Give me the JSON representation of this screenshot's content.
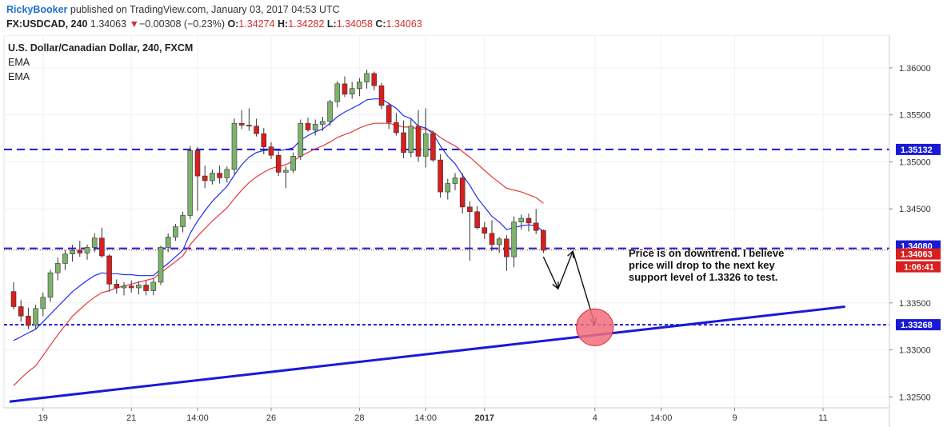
{
  "header": {
    "author": "RickyBooker",
    "published_text": " published on TradingView.com, January 03, 2017 04:53 UTC",
    "symbol": "FX:USDCAD, 240",
    "last": "1.34063",
    "change": "−0.00308 (−0.23%)",
    "o_label": "O:",
    "o_value": "1.34274",
    "h_label": "H:",
    "h_value": "1.34282",
    "l_label": "L:",
    "l_value": "1.34058",
    "c_label": "C:",
    "c_value": "1.34063"
  },
  "legend": {
    "title": "U.S. Dollar/Canadian Dollar, 240, FXCM",
    "indicators": [
      "EMA",
      "EMA"
    ]
  },
  "annotation": {
    "lines": [
      "Price is on downtrend. I believe",
      "price will drop to the next key",
      "support level of 1.3326 to test."
    ]
  },
  "colors": {
    "bull": "#7cb26b",
    "bear": "#d81e1e",
    "ema_fast": "#1e2ff0",
    "ema_slow": "#e53935",
    "level": "#1a1ad6",
    "trend": "#1a1ad6",
    "target": "#f26d7d"
  },
  "chart_data": {
    "type": "candlestick",
    "ylim": [
      1.3235,
      1.3622
    ],
    "price_ticks": [
      "1.36000",
      "1.35500",
      "1.35000",
      "1.34500",
      "1.33500",
      "1.33000",
      "1.32500"
    ],
    "price_tick_values": [
      1.36,
      1.355,
      1.35,
      1.345,
      1.335,
      1.33,
      1.325
    ],
    "time_labels": [
      "19",
      "21",
      "14:00",
      "26",
      "28",
      "14:00",
      "2017",
      "4",
      "14:00",
      "9",
      "11"
    ],
    "time_label_bars": [
      4,
      16,
      25,
      35,
      47,
      56,
      64,
      79,
      88,
      98,
      110
    ],
    "levels": [
      {
        "label": "1.35132",
        "value": 1.35132,
        "style": "dashed"
      },
      {
        "label": "1.34080",
        "value": 1.3408,
        "style": "dashed"
      },
      {
        "label": "1.33268",
        "value": 1.33268,
        "style": "dotted"
      }
    ],
    "last_price": {
      "label": "1.34063",
      "value": 1.34063,
      "countdown": "1:06:41"
    },
    "trendline": {
      "from": [
        0,
        1.3245
      ],
      "to": [
        113,
        1.3346
      ]
    },
    "projection": [
      [
        72,
        1.3399
      ],
      [
        74,
        1.3365
      ],
      [
        76,
        1.3405
      ],
      [
        79,
        1.3327
      ]
    ],
    "target": {
      "bar": 79,
      "value": 1.3324
    },
    "candles": [
      {
        "o": 1.3362,
        "h": 1.3372,
        "l": 1.3343,
        "c": 1.3346
      },
      {
        "o": 1.3346,
        "h": 1.3353,
        "l": 1.333,
        "c": 1.3336
      },
      {
        "o": 1.3336,
        "h": 1.3345,
        "l": 1.3322,
        "c": 1.3326
      },
      {
        "o": 1.3326,
        "h": 1.3348,
        "l": 1.3322,
        "c": 1.3344
      },
      {
        "o": 1.3344,
        "h": 1.3361,
        "l": 1.3336,
        "c": 1.3356
      },
      {
        "o": 1.3356,
        "h": 1.3385,
        "l": 1.3351,
        "c": 1.3382
      },
      {
        "o": 1.3382,
        "h": 1.3398,
        "l": 1.3374,
        "c": 1.3392
      },
      {
        "o": 1.3392,
        "h": 1.3406,
        "l": 1.3385,
        "c": 1.3402
      },
      {
        "o": 1.3402,
        "h": 1.3412,
        "l": 1.3394,
        "c": 1.3406
      },
      {
        "o": 1.3406,
        "h": 1.3416,
        "l": 1.3399,
        "c": 1.3403
      },
      {
        "o": 1.3403,
        "h": 1.3412,
        "l": 1.3396,
        "c": 1.3409
      },
      {
        "o": 1.3409,
        "h": 1.3424,
        "l": 1.3404,
        "c": 1.3419
      },
      {
        "o": 1.3419,
        "h": 1.343,
        "l": 1.3398,
        "c": 1.34
      },
      {
        "o": 1.34,
        "h": 1.3402,
        "l": 1.3362,
        "c": 1.337
      },
      {
        "o": 1.337,
        "h": 1.3375,
        "l": 1.336,
        "c": 1.3366
      },
      {
        "o": 1.3366,
        "h": 1.3372,
        "l": 1.3358,
        "c": 1.3368
      },
      {
        "o": 1.3368,
        "h": 1.3374,
        "l": 1.3361,
        "c": 1.3366
      },
      {
        "o": 1.3366,
        "h": 1.3373,
        "l": 1.3359,
        "c": 1.3369
      },
      {
        "o": 1.3369,
        "h": 1.3374,
        "l": 1.3358,
        "c": 1.3363
      },
      {
        "o": 1.3363,
        "h": 1.3376,
        "l": 1.3358,
        "c": 1.3372
      },
      {
        "o": 1.3372,
        "h": 1.3411,
        "l": 1.3369,
        "c": 1.3409
      },
      {
        "o": 1.3409,
        "h": 1.3424,
        "l": 1.3404,
        "c": 1.342
      },
      {
        "o": 1.342,
        "h": 1.3434,
        "l": 1.3416,
        "c": 1.3431
      },
      {
        "o": 1.3431,
        "h": 1.3447,
        "l": 1.3425,
        "c": 1.3443
      },
      {
        "o": 1.3443,
        "h": 1.3517,
        "l": 1.3439,
        "c": 1.3512
      },
      {
        "o": 1.3512,
        "h": 1.3516,
        "l": 1.3448,
        "c": 1.3485
      },
      {
        "o": 1.3485,
        "h": 1.3496,
        "l": 1.3472,
        "c": 1.348
      },
      {
        "o": 1.348,
        "h": 1.3492,
        "l": 1.3476,
        "c": 1.3488
      },
      {
        "o": 1.3488,
        "h": 1.3496,
        "l": 1.3477,
        "c": 1.3483
      },
      {
        "o": 1.3483,
        "h": 1.3495,
        "l": 1.3478,
        "c": 1.3492
      },
      {
        "o": 1.3492,
        "h": 1.3546,
        "l": 1.3487,
        "c": 1.3541
      },
      {
        "o": 1.3541,
        "h": 1.3555,
        "l": 1.3535,
        "c": 1.3539
      },
      {
        "o": 1.3539,
        "h": 1.3557,
        "l": 1.3533,
        "c": 1.3538
      },
      {
        "o": 1.3538,
        "h": 1.3546,
        "l": 1.3527,
        "c": 1.353
      },
      {
        "o": 1.353,
        "h": 1.3536,
        "l": 1.3508,
        "c": 1.3516
      },
      {
        "o": 1.3516,
        "h": 1.3521,
        "l": 1.3503,
        "c": 1.3507
      },
      {
        "o": 1.3507,
        "h": 1.3511,
        "l": 1.3485,
        "c": 1.3489
      },
      {
        "o": 1.3489,
        "h": 1.3495,
        "l": 1.3472,
        "c": 1.3491
      },
      {
        "o": 1.3491,
        "h": 1.351,
        "l": 1.3488,
        "c": 1.3506
      },
      {
        "o": 1.3506,
        "h": 1.3545,
        "l": 1.3502,
        "c": 1.3541
      },
      {
        "o": 1.3541,
        "h": 1.3547,
        "l": 1.3532,
        "c": 1.3534
      },
      {
        "o": 1.3534,
        "h": 1.3545,
        "l": 1.3528,
        "c": 1.354
      },
      {
        "o": 1.354,
        "h": 1.3548,
        "l": 1.3533,
        "c": 1.3543
      },
      {
        "o": 1.3543,
        "h": 1.3566,
        "l": 1.3538,
        "c": 1.3564
      },
      {
        "o": 1.3564,
        "h": 1.3586,
        "l": 1.3558,
        "c": 1.3583
      },
      {
        "o": 1.3583,
        "h": 1.3591,
        "l": 1.3569,
        "c": 1.3572
      },
      {
        "o": 1.3572,
        "h": 1.3585,
        "l": 1.3567,
        "c": 1.3578
      },
      {
        "o": 1.3578,
        "h": 1.3589,
        "l": 1.357,
        "c": 1.3585
      },
      {
        "o": 1.3585,
        "h": 1.3598,
        "l": 1.3578,
        "c": 1.3594
      },
      {
        "o": 1.3594,
        "h": 1.3596,
        "l": 1.3576,
        "c": 1.3581
      },
      {
        "o": 1.3581,
        "h": 1.3584,
        "l": 1.3556,
        "c": 1.356
      },
      {
        "o": 1.356,
        "h": 1.3563,
        "l": 1.3535,
        "c": 1.3542
      },
      {
        "o": 1.3542,
        "h": 1.3552,
        "l": 1.3528,
        "c": 1.3531
      },
      {
        "o": 1.3531,
        "h": 1.3544,
        "l": 1.3504,
        "c": 1.351
      },
      {
        "o": 1.351,
        "h": 1.3545,
        "l": 1.3505,
        "c": 1.3538
      },
      {
        "o": 1.3538,
        "h": 1.3555,
        "l": 1.35,
        "c": 1.3506
      },
      {
        "o": 1.3506,
        "h": 1.3557,
        "l": 1.3494,
        "c": 1.353
      },
      {
        "o": 1.353,
        "h": 1.3533,
        "l": 1.35,
        "c": 1.3502
      },
      {
        "o": 1.3502,
        "h": 1.3508,
        "l": 1.3462,
        "c": 1.3468
      },
      {
        "o": 1.3468,
        "h": 1.3482,
        "l": 1.346,
        "c": 1.3477
      },
      {
        "o": 1.3477,
        "h": 1.3488,
        "l": 1.347,
        "c": 1.3483
      },
      {
        "o": 1.3483,
        "h": 1.3488,
        "l": 1.3445,
        "c": 1.3452
      },
      {
        "o": 1.3452,
        "h": 1.3458,
        "l": 1.3395,
        "c": 1.3447
      },
      {
        "o": 1.3447,
        "h": 1.3453,
        "l": 1.3428,
        "c": 1.343
      },
      {
        "o": 1.343,
        "h": 1.3436,
        "l": 1.3418,
        "c": 1.3424
      },
      {
        "o": 1.3424,
        "h": 1.3438,
        "l": 1.3405,
        "c": 1.3412
      },
      {
        "o": 1.3412,
        "h": 1.342,
        "l": 1.3403,
        "c": 1.3418
      },
      {
        "o": 1.3418,
        "h": 1.3422,
        "l": 1.3384,
        "c": 1.3399
      },
      {
        "o": 1.3399,
        "h": 1.3442,
        "l": 1.3388,
        "c": 1.3436
      },
      {
        "o": 1.3436,
        "h": 1.3444,
        "l": 1.3428,
        "c": 1.344
      },
      {
        "o": 1.344,
        "h": 1.3445,
        "l": 1.3426,
        "c": 1.3435
      },
      {
        "o": 1.3435,
        "h": 1.345,
        "l": 1.3423,
        "c": 1.3427
      },
      {
        "o": 1.3427,
        "h": 1.3428,
        "l": 1.3403,
        "c": 1.3406
      }
    ],
    "ema_fast": [
      1.331,
      1.3314,
      1.3318,
      1.3322,
      1.333,
      1.3338,
      1.3346,
      1.3354,
      1.3362,
      1.3368,
      1.3374,
      1.3379,
      1.3382,
      1.3381,
      1.3381,
      1.338,
      1.338,
      1.3379,
      1.3379,
      1.3379,
      1.3386,
      1.3392,
      1.3399,
      1.3406,
      1.3424,
      1.3437,
      1.3448,
      1.3458,
      1.3466,
      1.3474,
      1.3486,
      1.3497,
      1.3505,
      1.351,
      1.3512,
      1.3513,
      1.3512,
      1.3513,
      1.3515,
      1.3523,
      1.3528,
      1.3532,
      1.3535,
      1.3541,
      1.3548,
      1.3553,
      1.3557,
      1.3561,
      1.3566,
      1.3567,
      1.3567,
      1.3562,
      1.3557,
      1.3549,
      1.3546,
      1.3538,
      1.3536,
      1.353,
      1.3517,
      1.3506,
      1.3498,
      1.3486,
      1.3475,
      1.3462,
      1.3452,
      1.3442,
      1.3436,
      1.3428,
      1.343,
      1.3432,
      1.3433,
      1.3432,
      1.3426
    ],
    "ema_slow": [
      1.3262,
      1.327,
      1.3277,
      1.3283,
      1.3294,
      1.3305,
      1.3316,
      1.3326,
      1.3336,
      1.3343,
      1.335,
      1.3356,
      1.3361,
      1.3363,
      1.3366,
      1.3368,
      1.337,
      1.3372,
      1.3374,
      1.3376,
      1.3382,
      1.3388,
      1.3394,
      1.34,
      1.3412,
      1.3421,
      1.3429,
      1.3437,
      1.3444,
      1.3451,
      1.3461,
      1.347,
      1.3478,
      1.3484,
      1.3489,
      1.3493,
      1.3495,
      1.3497,
      1.3501,
      1.3506,
      1.351,
      1.3514,
      1.3517,
      1.3521,
      1.3526,
      1.3529,
      1.3532,
      1.3536,
      1.3539,
      1.3541,
      1.3541,
      1.3541,
      1.3539,
      1.3537,
      1.3537,
      1.3535,
      1.3535,
      1.3532,
      1.3526,
      1.3521,
      1.3517,
      1.3511,
      1.3505,
      1.3498,
      1.3491,
      1.3484,
      1.3478,
      1.3472,
      1.347,
      1.3468,
      1.3465,
      1.3462,
      1.3456
    ]
  }
}
